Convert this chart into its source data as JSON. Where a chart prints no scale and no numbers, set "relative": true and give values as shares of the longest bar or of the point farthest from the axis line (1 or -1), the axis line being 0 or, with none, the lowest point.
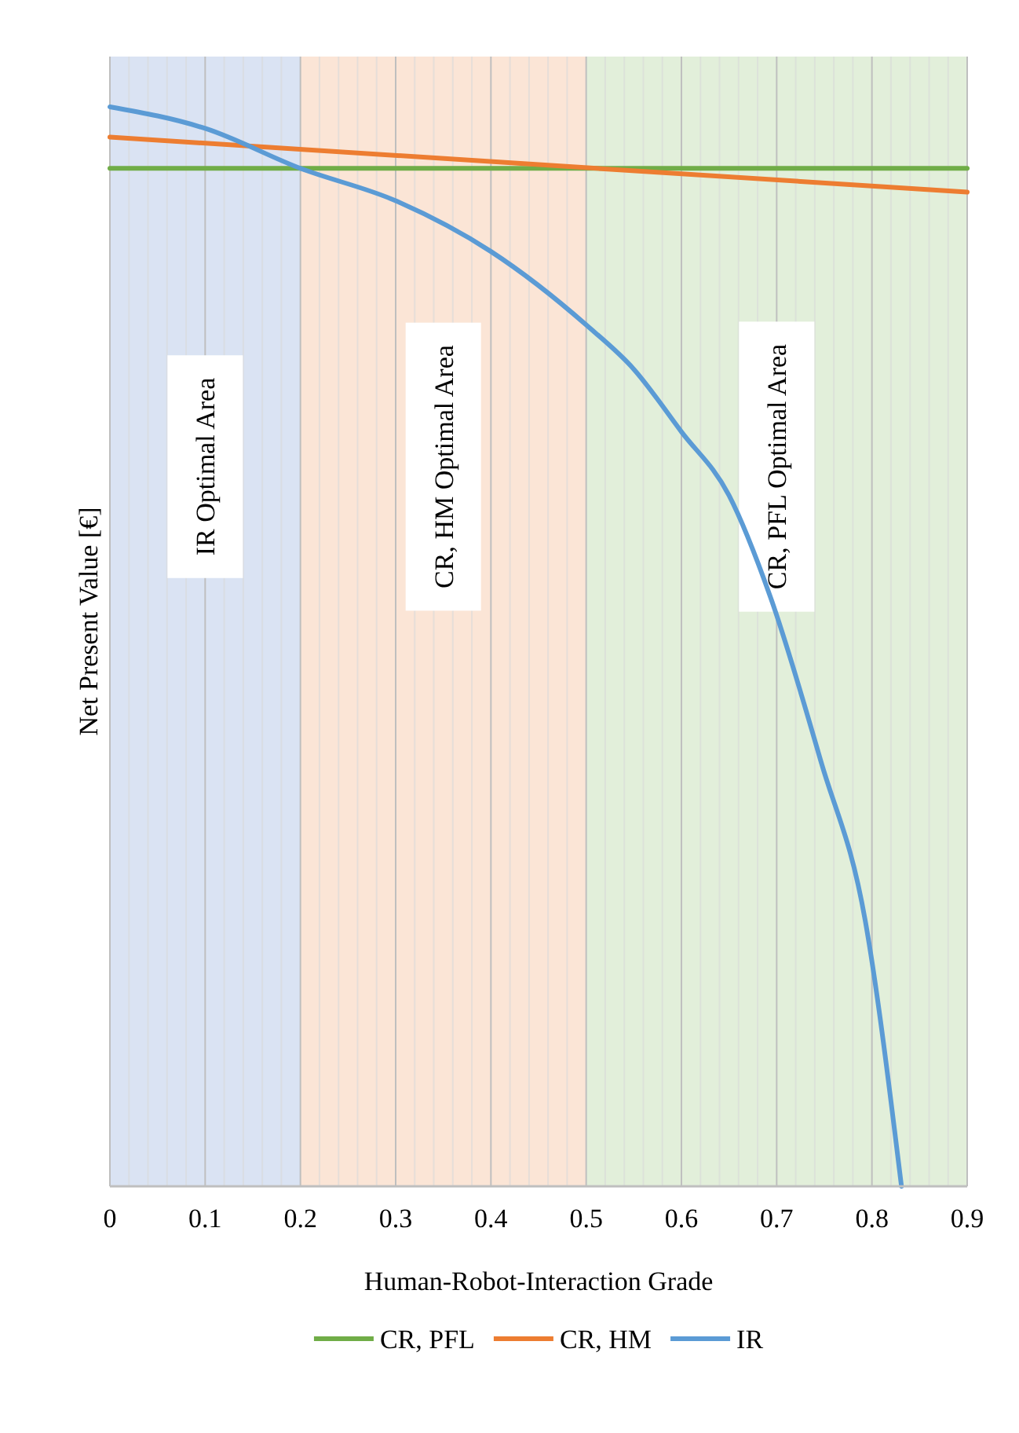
{
  "chart_data": {
    "type": "line",
    "relative": true,
    "xlabel": "Human-Robot-Interaction Grade",
    "ylabel": "Net Present Value [€]",
    "xlim": [
      0,
      0.9
    ],
    "xticks": [
      0,
      0.1,
      0.2,
      0.3,
      0.4,
      0.5,
      0.6,
      0.7,
      0.8,
      0.9
    ],
    "grid": "x",
    "legend": "bottom",
    "line_style": "solid",
    "marker": "none",
    "bands": [
      {
        "axis": "x",
        "from": 0,
        "to": 0.2,
        "label": "IR Optimal Area",
        "color": "#dae3f3"
      },
      {
        "axis": "x",
        "from": 0.2,
        "to": 0.5,
        "label": "CR, HM Optimal Area",
        "color": "#fbe5d6"
      },
      {
        "axis": "x",
        "from": 0.5,
        "to": 0.9,
        "label": "CR, PFL Optimal Area",
        "color": "#e2efda"
      }
    ],
    "series": [
      {
        "name": "CR, PFL",
        "color": "#70ad47",
        "x": [
          0,
          0.9
        ],
        "values": [
          0.943,
          0.943
        ]
      },
      {
        "name": "CR, HM",
        "color": "#ed7d31",
        "x": [
          0,
          0.9
        ],
        "values": [
          0.972,
          0.921
        ]
      },
      {
        "name": "IR",
        "color": "#5b9bd5",
        "x": [
          0,
          0.1,
          0.2,
          0.3,
          0.4,
          0.5,
          0.55,
          0.6,
          0.65,
          0.693,
          0.747,
          0.793,
          0.831
        ],
        "values": [
          1,
          0.98,
          0.943,
          0.913,
          0.866,
          0.798,
          0.757,
          0.699,
          0.64,
          0.547,
          0.392,
          0.246,
          0
        ]
      }
    ]
  }
}
